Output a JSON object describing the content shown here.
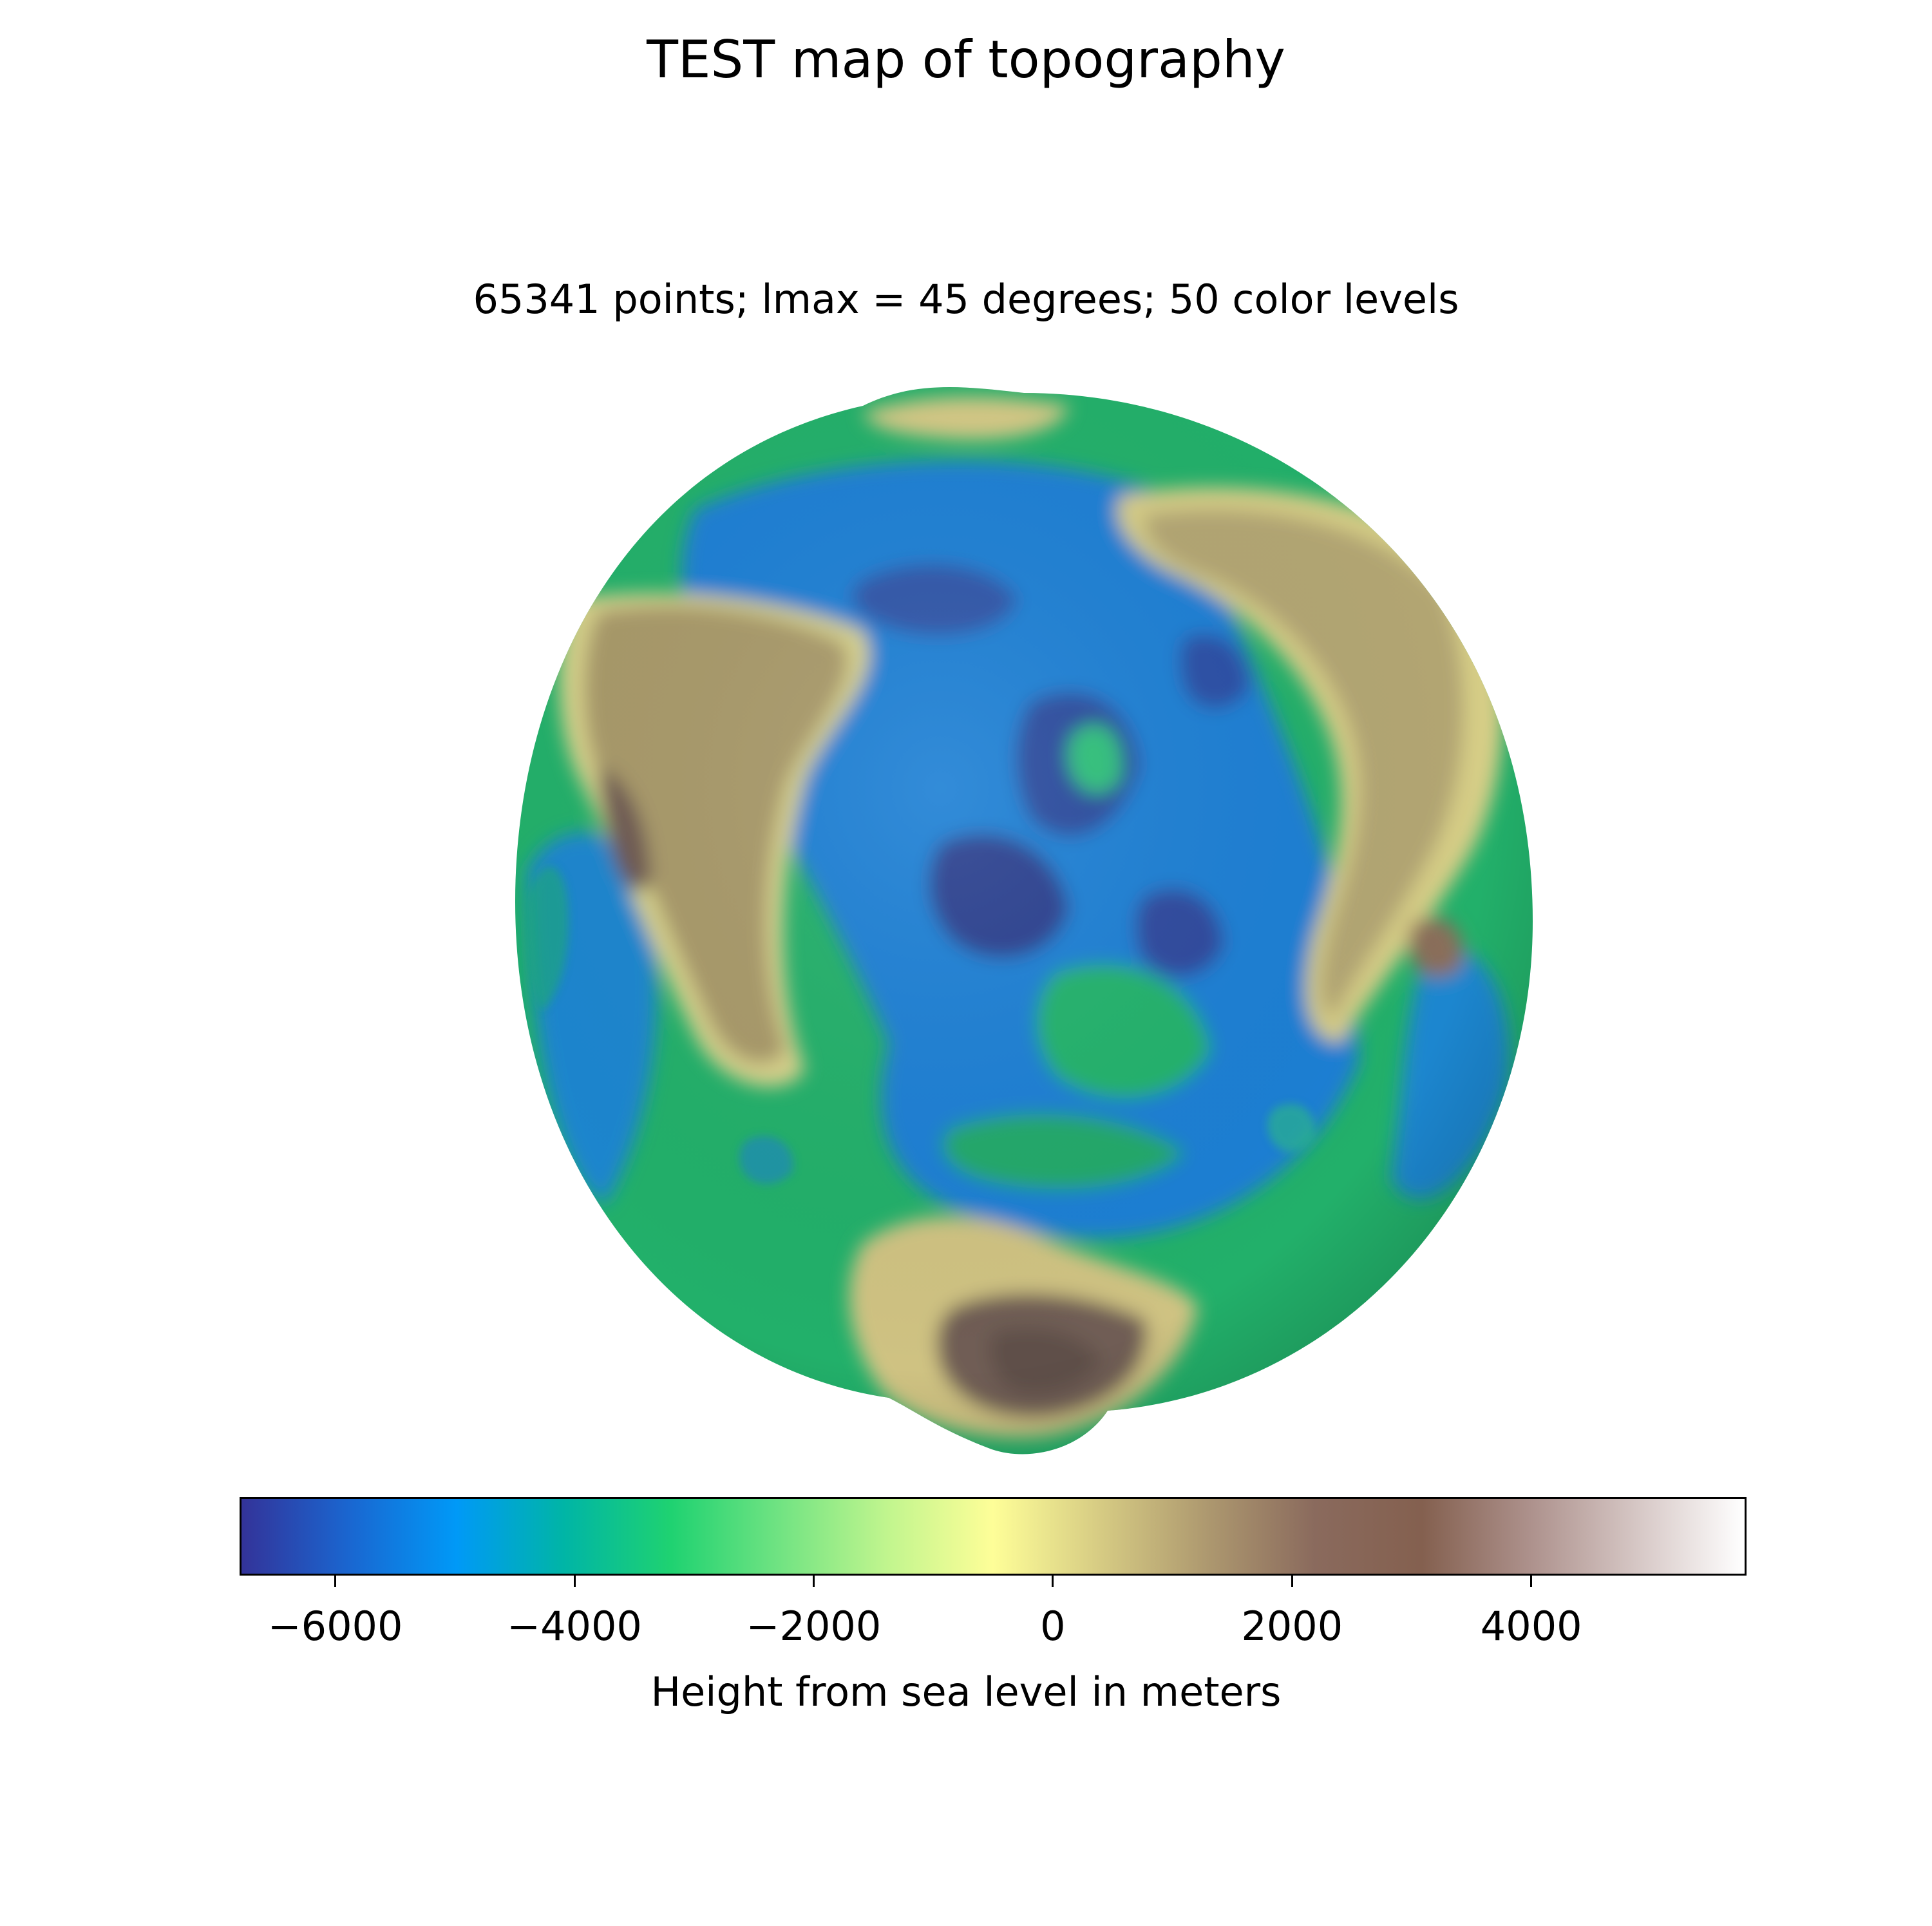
{
  "chart_data": {
    "type": "heatmap",
    "title": "TEST map of topography",
    "subtitle": "65341 points; lmax = 45 degrees; 50 color levels",
    "colorbar": {
      "label": "Height from sea level in meters",
      "range": [
        -6800,
        5800
      ],
      "ticks": [
        -6000,
        -4000,
        -2000,
        0,
        2000,
        4000
      ],
      "tick_labels": [
        "−6000",
        "−4000",
        "−2000",
        "0",
        "2000",
        "4000"
      ],
      "colormap": "terrain",
      "colors": [
        "#333399",
        "#1a66d0",
        "#0099f7",
        "#00b5a6",
        "#1fd271",
        "#70e382",
        "#c0f58e",
        "#fefe98",
        "#d6cb83",
        "#ad986f",
        "#8a6a5d",
        "#84604f",
        "#ad918c",
        "#d6c7c5",
        "#ffffff"
      ]
    },
    "surface": {
      "projection": "3D sphere view",
      "palette": {
        "deep": "#2a3f8f",
        "ocean": "#1a7ad6",
        "shelf": "#22c06e",
        "coast": "#c8e58a",
        "land": "#a89a6c",
        "highland": "#d9d08a",
        "mountain": "#7c6459"
      }
    }
  }
}
